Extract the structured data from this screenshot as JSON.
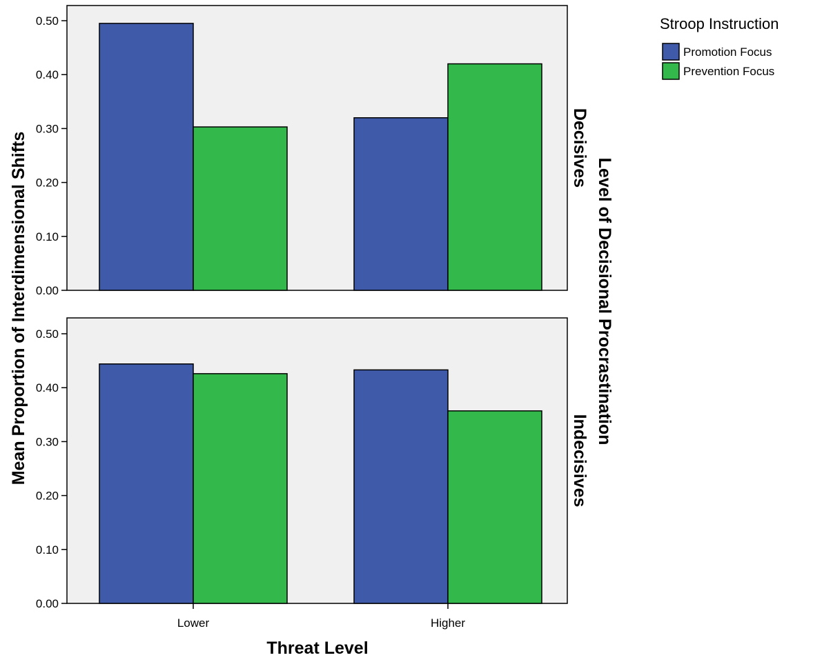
{
  "chart_data": {
    "type": "bar",
    "title": "",
    "xlabel": "Threat Level",
    "ylabel": "Mean Proportion of Interdimensional Shifts",
    "facet_label": "Level of Decisional Procrastination",
    "categories": [
      "Lower",
      "Higher"
    ],
    "ylim": [
      0,
      0.5
    ],
    "yticks": [
      "0.00",
      "0.10",
      "0.20",
      "0.30",
      "0.40",
      "0.50"
    ],
    "grid": false,
    "legend": {
      "title": "Stroop Instruction",
      "placement": "top-right",
      "entries": [
        "Promotion Focus",
        "Prevention Focus"
      ]
    },
    "colors": [
      "#3f5aa9",
      "#33b84b"
    ],
    "panels": [
      {
        "name": "Decisives",
        "series": [
          {
            "name": "Promotion Focus",
            "values": [
              0.495,
              0.32
            ]
          },
          {
            "name": "Prevention Focus",
            "values": [
              0.303,
              0.42
            ]
          }
        ]
      },
      {
        "name": "Indecisives",
        "series": [
          {
            "name": "Promotion Focus",
            "values": [
              0.444,
              0.433
            ]
          },
          {
            "name": "Prevention Focus",
            "values": [
              0.426,
              0.357
            ]
          }
        ]
      }
    ]
  }
}
